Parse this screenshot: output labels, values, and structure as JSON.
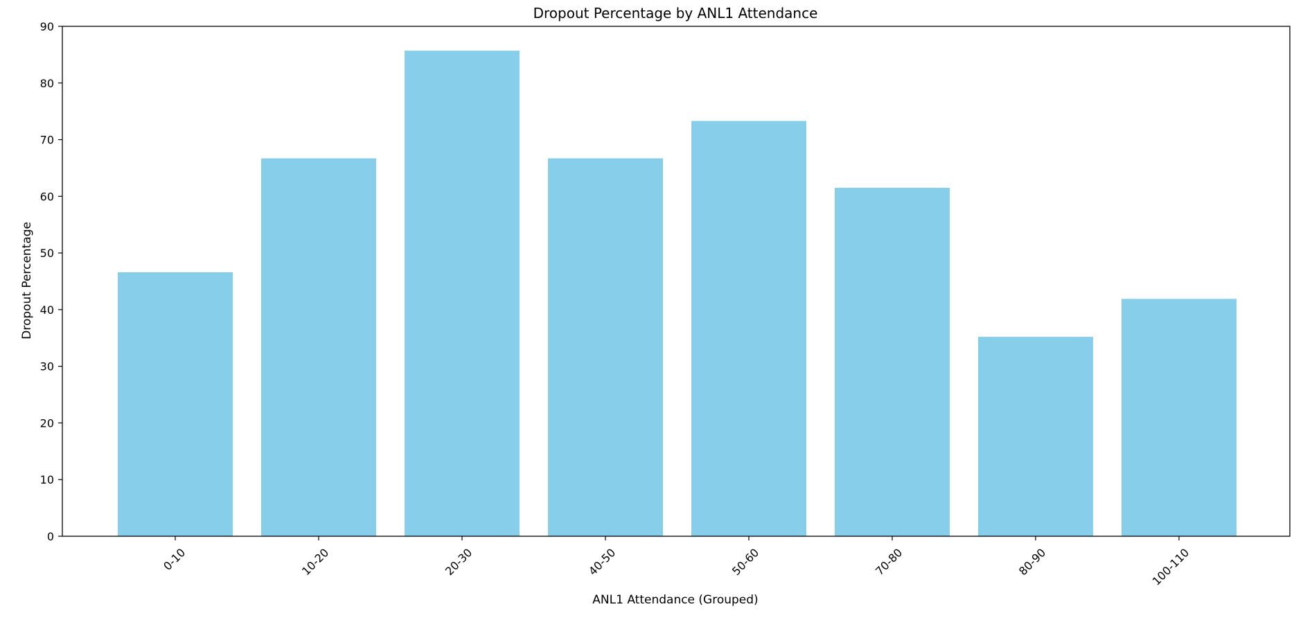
{
  "chart_data": {
    "type": "bar",
    "title": "Dropout Percentage by ANL1 Attendance",
    "xlabel": "ANL1 Attendance (Grouped)",
    "ylabel": "Dropout Percentage",
    "categories": [
      "0-10",
      "10-20",
      "20-30",
      "40-50",
      "50-60",
      "70-80",
      "80-90",
      "100-110"
    ],
    "values": [
      46.6,
      66.7,
      85.7,
      66.7,
      73.3,
      61.5,
      35.2,
      41.9
    ],
    "ylim": [
      0,
      90
    ],
    "yticks": [
      0,
      10,
      20,
      30,
      40,
      50,
      60,
      70,
      80,
      90
    ],
    "grid": false,
    "bar_color": "#87CEEB",
    "x_tick_rotation": -45
  }
}
